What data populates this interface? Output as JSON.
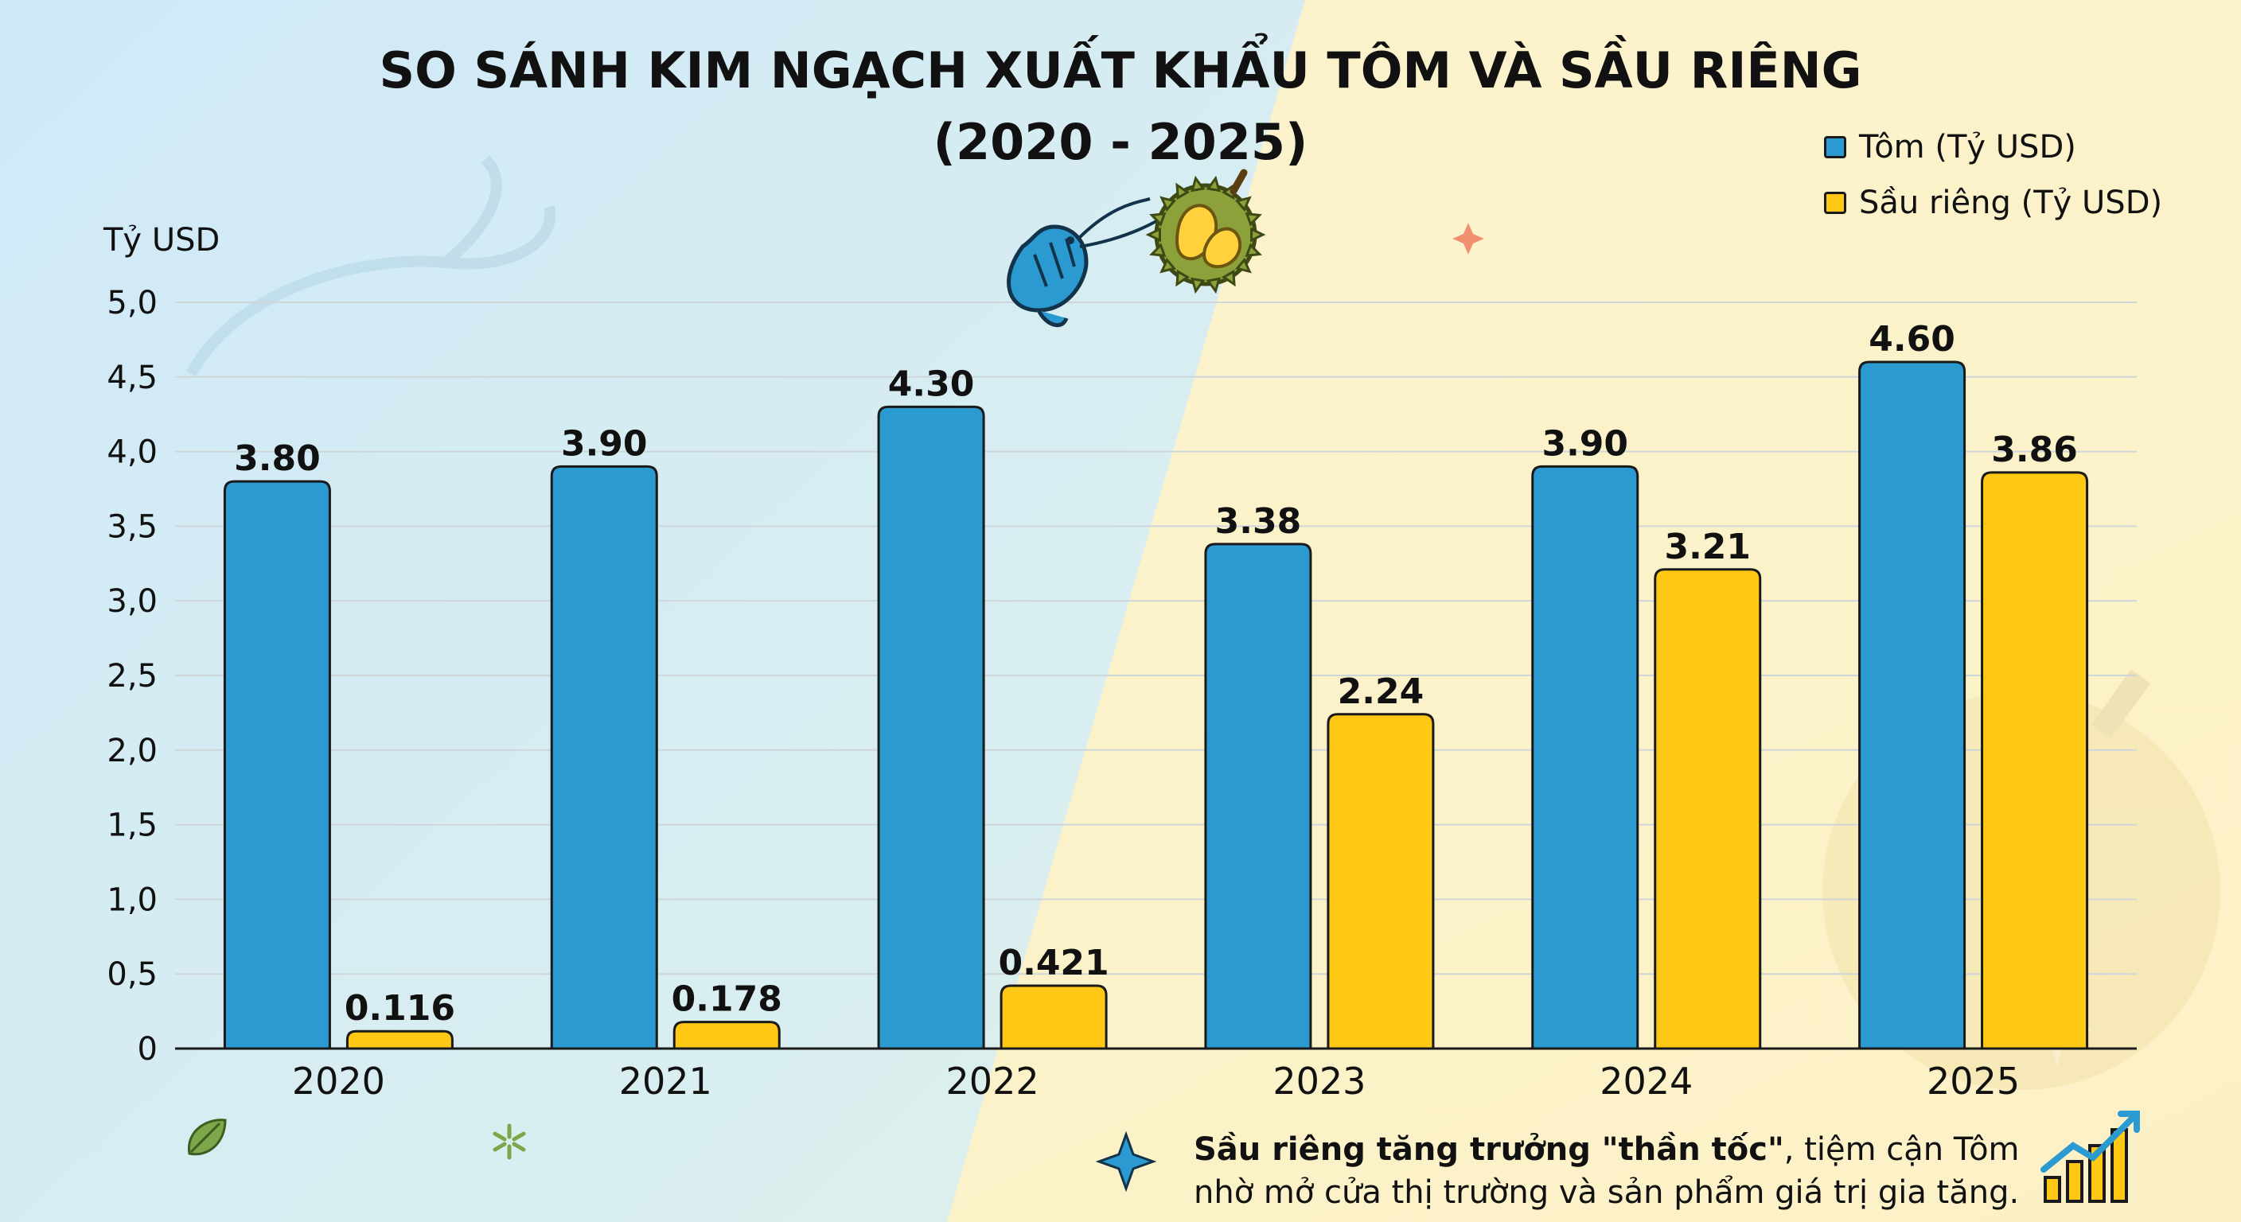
{
  "title": {
    "line1": "SO SÁNH KIM NGẠCH XUẤT KHẨU TÔM VÀ SẦU RIÊNG",
    "line2": "(2020 - 2025)"
  },
  "legend": [
    {
      "label": "Tôm (Tỷ USD)",
      "color": "#2A9AD1"
    },
    {
      "label": "Sầu riêng (Tỷ USD)",
      "color": "#FFC814"
    }
  ],
  "footnote": {
    "bold": "Sầu riêng tăng trưởng \"thần tốc\"",
    "line1_rest": ", tiệm cận Tôm",
    "line2": "nhờ mở cửa thị trường và sản phẩm giá trị gia tăng."
  },
  "icons": [
    "shrimp-icon",
    "durian-icon",
    "sparkle-icon",
    "leaf-icon",
    "growth-chart-icon"
  ],
  "colors": {
    "shrimp": "#2A9AD1",
    "durian": "#FFC814",
    "outline": "#1a1a1a",
    "bg_left": "#D6ECF8",
    "bg_right": "#FCF3CC"
  },
  "chart_data": {
    "type": "bar",
    "title": "SO SÁNH KIM NGẠCH XUẤT KHẨU TÔM VÀ SẦU RIÊNG (2020 - 2025)",
    "ylabel": "Tỷ USD",
    "xlabel": "",
    "categories": [
      "2020",
      "2021",
      "2022",
      "2023",
      "2024",
      "2025"
    ],
    "ylim": [
      0,
      5
    ],
    "yticks": [
      "0",
      "0,5",
      "1,0",
      "1,5",
      "2,0",
      "2,5",
      "3,0",
      "3,5",
      "4,0",
      "4,5",
      "5,0"
    ],
    "grid": true,
    "legend_position": "top-right",
    "series": [
      {
        "name": "Tôm (Tỷ USD)",
        "values": [
          3.8,
          3.9,
          4.3,
          3.38,
          3.9,
          4.6
        ],
        "labels": [
          "3.80",
          "3.90",
          "4.30",
          "3.38",
          "3.90",
          "4.60"
        ]
      },
      {
        "name": "Sầu riêng (Tỷ USD)",
        "values": [
          0.116,
          0.178,
          0.421,
          2.24,
          3.21,
          3.86
        ],
        "labels": [
          "0.116",
          "0.178",
          "0.421",
          "2.24",
          "3.21",
          "3.86"
        ]
      }
    ]
  }
}
